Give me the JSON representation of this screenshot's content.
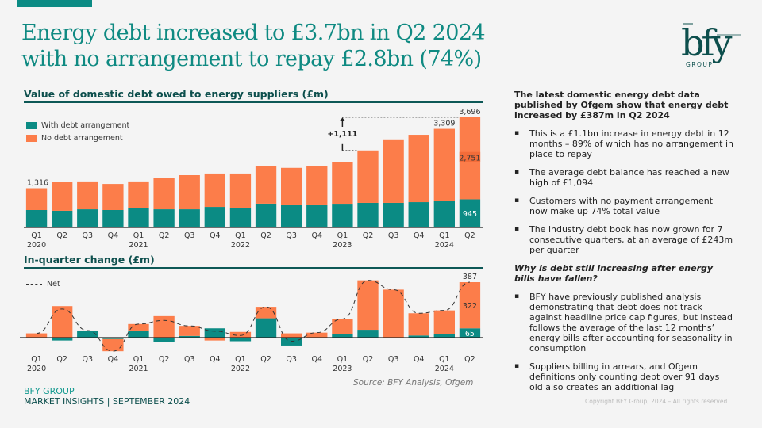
{
  "header": {
    "title_line1": "Energy debt increased to £3.7bn in Q2 2024",
    "title_line2": "with no arrangement to repay £2.8bn (74%)",
    "logo_text": "bfy",
    "logo_sub": "GROUP"
  },
  "colors": {
    "teal": "#0b8b84",
    "orange": "#fc7d4a",
    "title": "#0f8a82",
    "dark_teal": "#0d4f4d"
  },
  "chart_data": [
    {
      "type": "bar",
      "stacked": true,
      "title": "Value of domestic debt owed to energy suppliers (£m)",
      "categories": [
        "Q1 2020",
        "Q2",
        "Q3",
        "Q4",
        "Q1 2021",
        "Q2",
        "Q3",
        "Q4",
        "Q1 2022",
        "Q2",
        "Q3",
        "Q4",
        "Q1 2023",
        "Q2",
        "Q3",
        "Q4",
        "Q1 2024",
        "Q2"
      ],
      "tick_labels": [
        [
          "Q1",
          "2020"
        ],
        [
          "Q2",
          ""
        ],
        [
          "Q3",
          ""
        ],
        [
          "Q4",
          ""
        ],
        [
          "Q1",
          "2021"
        ],
        [
          "Q2",
          ""
        ],
        [
          "Q3",
          ""
        ],
        [
          "Q4",
          ""
        ],
        [
          "Q1",
          "2022"
        ],
        [
          "Q2",
          ""
        ],
        [
          "Q3",
          ""
        ],
        [
          "Q4",
          ""
        ],
        [
          "Q1",
          "2023"
        ],
        [
          "Q2",
          ""
        ],
        [
          "Q3",
          ""
        ],
        [
          "Q4",
          ""
        ],
        [
          "Q1",
          "2024"
        ],
        [
          "Q2",
          ""
        ]
      ],
      "series": [
        {
          "name": "With debt arrangement",
          "color": "#0b8b84",
          "values": [
            585,
            560,
            610,
            585,
            640,
            610,
            610,
            690,
            665,
            800,
            745,
            745,
            770,
            825,
            825,
            850,
            880,
            945
          ]
        },
        {
          "name": "No debt arrangement",
          "color": "#fc7d4a",
          "values": [
            731,
            960,
            935,
            875,
            905,
            1065,
            1145,
            1120,
            1145,
            1250,
            1255,
            1305,
            1415,
            1760,
            2105,
            2260,
            2429,
            2751
          ]
        }
      ],
      "totals": [
        1316,
        1520,
        1545,
        1460,
        1545,
        1675,
        1755,
        1810,
        1810,
        2050,
        2000,
        2050,
        2185,
        2585,
        2930,
        3110,
        3309,
        3696
      ],
      "data_labels": {
        "first_total": "1,316",
        "q1_2024_total": "3,309",
        "last_total": "3,696",
        "last_no_arrangement": "2,751",
        "last_with_arrangement": "945"
      },
      "annotation": {
        "text": "+1,111",
        "from_category": "Q2 2023",
        "to_category": "Q2 2024"
      },
      "ylim": [
        0,
        3800
      ],
      "legend": "top-left",
      "grid": false
    },
    {
      "type": "bar",
      "stacked": true,
      "title": "In-quarter change (£m)",
      "categories": [
        "Q1 2020",
        "Q2",
        "Q3",
        "Q4",
        "Q1 2021",
        "Q2",
        "Q3",
        "Q4",
        "Q1 2022",
        "Q2",
        "Q3",
        "Q4",
        "Q1 2023",
        "Q2",
        "Q3",
        "Q4",
        "Q1 2024",
        "Q2"
      ],
      "tick_labels": [
        [
          "Q1",
          "2020"
        ],
        [
          "Q2",
          ""
        ],
        [
          "Q3",
          ""
        ],
        [
          "Q4",
          ""
        ],
        [
          "Q1",
          "2021"
        ],
        [
          "Q2",
          ""
        ],
        [
          "Q3",
          ""
        ],
        [
          "Q4",
          ""
        ],
        [
          "Q1",
          "2022"
        ],
        [
          "Q2",
          ""
        ],
        [
          "Q3",
          ""
        ],
        [
          "Q4",
          ""
        ],
        [
          "Q1",
          "2023"
        ],
        [
          "Q2",
          ""
        ],
        [
          "Q3",
          ""
        ],
        [
          "Q4",
          ""
        ],
        [
          "Q1",
          "2024"
        ],
        [
          "Q2",
          ""
        ]
      ],
      "series": [
        {
          "name": "With debt arrangement",
          "color": "#0b8b84",
          "values": [
            0,
            -20,
            45,
            -10,
            50,
            -30,
            12,
            65,
            -25,
            135,
            -55,
            0,
            25,
            55,
            0,
            15,
            25,
            65
          ]
        },
        {
          "name": "No debt arrangement",
          "color": "#fc7d4a",
          "values": [
            30,
            220,
            5,
            -85,
            45,
            150,
            70,
            -20,
            40,
            80,
            30,
            35,
            105,
            345,
            335,
            155,
            165,
            322
          ]
        },
        {
          "name": "Net",
          "type": "line",
          "dashed": true,
          "color": "#333333",
          "values": [
            30,
            200,
            50,
            -95,
            95,
            120,
            82,
            45,
            15,
            215,
            -25,
            35,
            130,
            400,
            335,
            170,
            190,
            387
          ]
        }
      ],
      "data_labels": {
        "last_net": "387",
        "last_no_arrangement": "322",
        "last_with_arrangement": "65"
      },
      "ylim": [
        -120,
        420
      ],
      "legend": "top-left",
      "legend_label": "Net",
      "grid": false
    }
  ],
  "source": "Source: BFY Analysis, Ofgem",
  "sidebar": {
    "lead": "The latest domestic energy debt data published by Ofgem show that energy debt increased by £387m in Q2 2024",
    "bullets1": [
      "This is a £1.1bn increase in energy debt in 12 months – 89% of which has no arrangement in place to repay",
      "The average debt balance has reached a new high of £1,094",
      "Customers with no payment arrangement now make up 74% total value",
      "The industry debt book has now grown for 7 consecutive quarters, at an average of £243m per quarter"
    ],
    "question": "Why is debt still increasing after energy bills have fallen?",
    "bullets2": [
      "BFY have previously published analysis demonstrating that debt does not track against headline price cap figures, but instead follows the average of the last 12 months’ energy bills after accounting for seasonality in consumption",
      "Suppliers billing in arrears, and Ofgem definitions only counting debt over 91 days old also creates an additional lag"
    ]
  },
  "footer": {
    "company": "BFY GROUP",
    "subtitle": "MARKET INSIGHTS | SEPTEMBER 2024",
    "copyright": "Copyright BFY Group, 2024 – All rights reserved"
  }
}
